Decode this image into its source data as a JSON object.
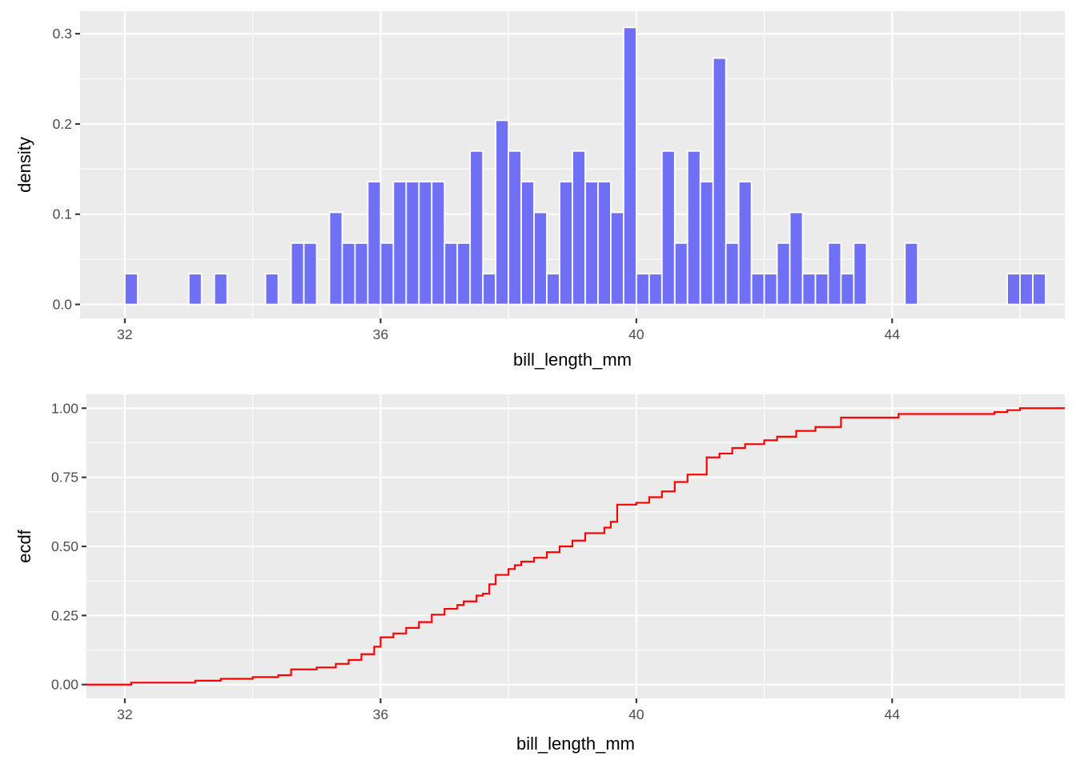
{
  "chart_data": [
    {
      "type": "bar",
      "subtype": "histogram",
      "xlabel": "bill_length_mm",
      "ylabel": "density",
      "xlim": [
        31.3,
        46.7
      ],
      "ylim": [
        -0.0155,
        0.325
      ],
      "x_ticks": [
        32,
        36,
        40,
        44
      ],
      "x_tick_labels": [
        "32",
        "36",
        "40",
        "44"
      ],
      "y_ticks": [
        0.0,
        0.1,
        0.2,
        0.3
      ],
      "y_tick_labels": [
        "0.0",
        "0.1",
        "0.2",
        "0.3"
      ],
      "grid": true,
      "bar_fill": "#7070f5",
      "bar_outline": "#ffffff",
      "bin_width": 0.2,
      "bin_start": 32.1,
      "bin_densities": [
        0.034,
        0,
        0,
        0,
        0,
        0.034,
        0,
        0.034,
        0,
        0,
        0,
        0.034,
        0,
        0.068,
        0.068,
        0,
        0.102,
        0.068,
        0.068,
        0.136,
        0.068,
        0.136,
        0.136,
        0.136,
        0.136,
        0.068,
        0.068,
        0.17,
        0.034,
        0.204,
        0.17,
        0.136,
        0.102,
        0.034,
        0.136,
        0.17,
        0.136,
        0.136,
        0.102,
        0.307,
        0.034,
        0.034,
        0.17,
        0.068,
        0.17,
        0.136,
        0.273,
        0.068,
        0.136,
        0.034,
        0.034,
        0.068,
        0.102,
        0.034,
        0.034,
        0.068,
        0.034,
        0.068,
        0,
        0,
        0,
        0.068,
        0,
        0,
        0,
        0,
        0,
        0,
        0,
        0.034,
        0.034,
        0.034
      ]
    },
    {
      "type": "line",
      "subtype": "ecdf-step",
      "xlabel": "bill_length_mm",
      "ylabel": "ecdf",
      "xlim": [
        31.4,
        46.7
      ],
      "ylim": [
        -0.05,
        1.05
      ],
      "x_ticks": [
        32,
        36,
        40,
        44
      ],
      "x_tick_labels": [
        "32",
        "36",
        "40",
        "44"
      ],
      "y_ticks": [
        0.0,
        0.25,
        0.5,
        0.75,
        1.0
      ],
      "y_tick_labels": [
        "0.00",
        "0.25",
        "0.50",
        "0.75",
        "1.00"
      ],
      "grid": true,
      "line_color": "#ff0000",
      "series": [
        {
          "x": [
            32.1,
            33.1,
            33.5,
            34.0,
            34.4,
            34.6,
            35.0,
            35.3,
            35.5,
            35.7,
            35.9,
            36.0,
            36.2,
            36.4,
            36.6,
            36.8,
            37.0,
            37.2,
            37.3,
            37.5,
            37.6,
            37.7,
            37.8,
            38.0,
            38.1,
            38.2,
            38.4,
            38.6,
            38.8,
            39.0,
            39.2,
            39.5,
            39.6,
            39.7,
            40.0,
            40.2,
            40.4,
            40.6,
            40.8,
            41.1,
            41.3,
            41.5,
            41.7,
            42.0,
            42.2,
            42.5,
            42.8,
            43.2,
            44.1,
            45.6,
            45.8,
            46.0
          ],
          "y": [
            0.007,
            0.014,
            0.021,
            0.027,
            0.034,
            0.055,
            0.062,
            0.075,
            0.089,
            0.11,
            0.137,
            0.171,
            0.185,
            0.205,
            0.226,
            0.253,
            0.274,
            0.288,
            0.301,
            0.322,
            0.329,
            0.363,
            0.397,
            0.418,
            0.432,
            0.445,
            0.459,
            0.479,
            0.5,
            0.521,
            0.548,
            0.568,
            0.589,
            0.651,
            0.658,
            0.678,
            0.699,
            0.733,
            0.76,
            0.822,
            0.836,
            0.856,
            0.87,
            0.884,
            0.897,
            0.918,
            0.932,
            0.966,
            0.979,
            0.986,
            0.993,
            1.0
          ]
        }
      ]
    }
  ]
}
